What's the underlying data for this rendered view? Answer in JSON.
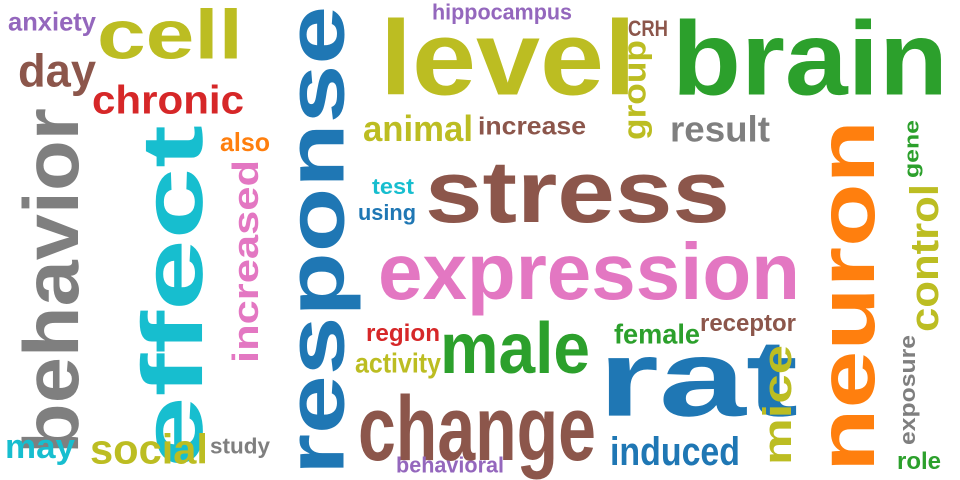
{
  "words": [
    {
      "text": "stress",
      "color": "#8c564b"
    },
    {
      "text": "response",
      "color": "#1f77b4",
      "vertical": true
    },
    {
      "text": "expression",
      "color": "#e377c2"
    },
    {
      "text": "brain",
      "color": "#2ca02c"
    },
    {
      "text": "level",
      "color": "#bcbd22"
    },
    {
      "text": "neuron",
      "color": "#ff7f0e",
      "vertical": true
    },
    {
      "text": "effect",
      "color": "#17becf",
      "vertical": true
    },
    {
      "text": "behavior",
      "color": "#7f7f7f",
      "vertical": true
    },
    {
      "text": "rat",
      "color": "#1f77b4"
    },
    {
      "text": "change",
      "color": "#8c564b"
    },
    {
      "text": "male",
      "color": "#2ca02c"
    },
    {
      "text": "cell",
      "color": "#bcbd22"
    },
    {
      "text": "increased",
      "color": "#e377c2",
      "vertical": true
    },
    {
      "text": "chronic",
      "color": "#d62728"
    },
    {
      "text": "day",
      "color": "#8c564b"
    },
    {
      "text": "social",
      "color": "#bcbd22"
    },
    {
      "text": "control",
      "color": "#bcbd22",
      "vertical": true
    },
    {
      "text": "mice",
      "color": "#bcbd22",
      "vertical": true
    },
    {
      "text": "result",
      "color": "#7f7f7f"
    },
    {
      "text": "animal",
      "color": "#bcbd22"
    },
    {
      "text": "induced",
      "color": "#1f77b4"
    },
    {
      "text": "increase",
      "color": "#8c564b"
    },
    {
      "text": "may",
      "color": "#17becf"
    },
    {
      "text": "female",
      "color": "#2ca02c"
    },
    {
      "text": "receptor",
      "color": "#8c564b"
    },
    {
      "text": "group",
      "color": "#bcbd22",
      "vertical": true
    },
    {
      "text": "exposure",
      "color": "#7f7f7f",
      "vertical": true
    },
    {
      "text": "activity",
      "color": "#bcbd22"
    },
    {
      "text": "region",
      "color": "#d62728"
    },
    {
      "text": "hippocampus",
      "color": "#9467bd"
    },
    {
      "text": "anxiety",
      "color": "#9467bd"
    },
    {
      "text": "behavioral",
      "color": "#9467bd"
    },
    {
      "text": "also",
      "color": "#ff7f0e"
    },
    {
      "text": "using",
      "color": "#1f77b4"
    },
    {
      "text": "test",
      "color": "#17becf"
    },
    {
      "text": "study",
      "color": "#7f7f7f"
    },
    {
      "text": "CRH",
      "color": "#8c564b"
    },
    {
      "text": "gene",
      "color": "#2ca02c",
      "vertical": true
    },
    {
      "text": "role",
      "color": "#2ca02c"
    }
  ]
}
